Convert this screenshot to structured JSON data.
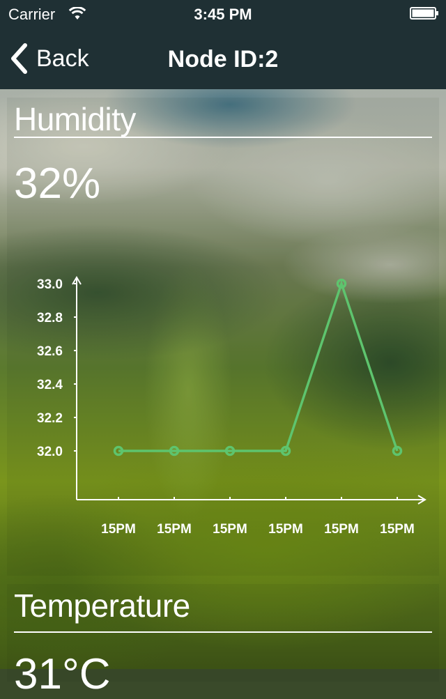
{
  "status_bar": {
    "carrier": "Carrier",
    "time": "3:45 PM",
    "wifi_icon": "wifi-icon",
    "battery_icon": "battery-icon"
  },
  "nav": {
    "back_label": "Back",
    "back_icon": "chevron-left-icon",
    "title": "Node ID:2"
  },
  "humidity": {
    "title": "Humidity",
    "value": "32%"
  },
  "temperature": {
    "title": "Temperature",
    "value": "31°C"
  },
  "colors": {
    "bar_background": "#1f3034",
    "series": "#5ec46e",
    "axis": "#ffffff"
  },
  "chart_data": {
    "type": "line",
    "categories": [
      "15PM",
      "15PM",
      "15PM",
      "15PM",
      "15PM",
      "15PM"
    ],
    "series": [
      {
        "values": [
          32.0,
          32.0,
          32.0,
          32.0,
          33.0,
          32.0
        ]
      }
    ],
    "yticks": [
      "32.0",
      "32.2",
      "32.4",
      "32.6",
      "32.8",
      "33.0"
    ],
    "ylim": [
      32.0,
      33.0
    ],
    "grid": false,
    "title": "",
    "xlabel": "",
    "ylabel": ""
  }
}
